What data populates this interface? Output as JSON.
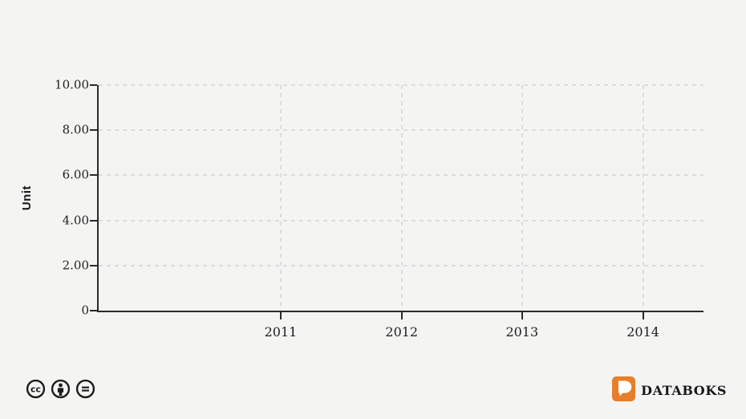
{
  "colors": {
    "background": "#f4f4f3",
    "grid": "#dcdcdc",
    "axis": "#2a2a2a",
    "text": "#1f1f1f",
    "brand_orange": "#e87e2a"
  },
  "chart_data": {
    "type": "bar",
    "title": "",
    "xlabel": "",
    "ylabel": "Unit",
    "categories": [
      "2011",
      "2012",
      "2013",
      "2014"
    ],
    "series": [],
    "ylim": [
      0,
      10
    ],
    "yticks": [
      {
        "value": 0,
        "label": "0"
      },
      {
        "value": 2,
        "label": "2.00"
      },
      {
        "value": 4,
        "label": "4.00"
      },
      {
        "value": 6,
        "label": "6.00"
      },
      {
        "value": 8,
        "label": "8.00"
      },
      {
        "value": 10,
        "label": "10.00"
      }
    ],
    "x_tick_pct": [
      30.1,
      50.1,
      70.0,
      90.0
    ],
    "grid": true,
    "legend": false
  },
  "footer": {
    "license_icons": [
      "cc",
      "attribution",
      "no-derivatives"
    ],
    "brand": {
      "wordmark": "DATABOKS"
    }
  }
}
